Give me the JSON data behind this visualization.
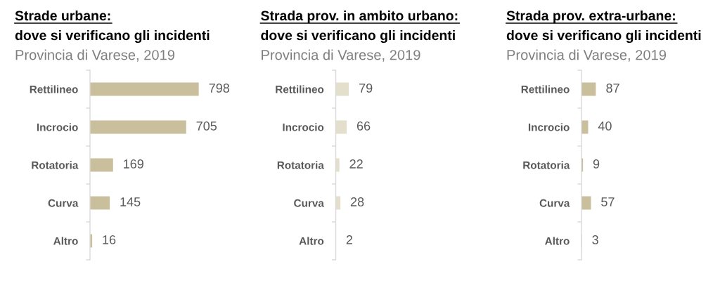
{
  "chart_data": [
    {
      "type": "bar",
      "orientation": "horizontal",
      "title": "Strade urbane:\ndove si verificano gli incidenti",
      "subtitle": "Provincia di Varese, 2019",
      "categories": [
        "Rettilineo",
        "Incrocio",
        "Rotatoria",
        "Curva",
        "Altro"
      ],
      "values": [
        798,
        705,
        169,
        145,
        16
      ],
      "color": "#c9bf9c",
      "data_labels": true,
      "tick_labels": "y"
    },
    {
      "type": "bar",
      "orientation": "horizontal",
      "title": "Strada prov. in ambito urbano:\ndove si verificano gli incidenti",
      "subtitle": "Provincia di Varese, 2019",
      "categories": [
        "Rettilineo",
        "Incrocio",
        "Rotatoria",
        "Curva",
        "Altro"
      ],
      "values": [
        79,
        66,
        22,
        28,
        2
      ],
      "color": "#e3dfcc",
      "data_labels": true,
      "tick_labels": "y"
    },
    {
      "type": "bar",
      "orientation": "horizontal",
      "title": "Strada prov. extra-urbane:\ndove si verificano gli incidenti",
      "subtitle": "Provincia di Varese, 2019",
      "categories": [
        "Rettilineo",
        "Incrocio",
        "Rotatoria",
        "Curva",
        "Altro"
      ],
      "values": [
        87,
        40,
        9,
        57,
        3
      ],
      "color": "#c9bf9c",
      "data_labels": true,
      "tick_labels": "y"
    }
  ]
}
